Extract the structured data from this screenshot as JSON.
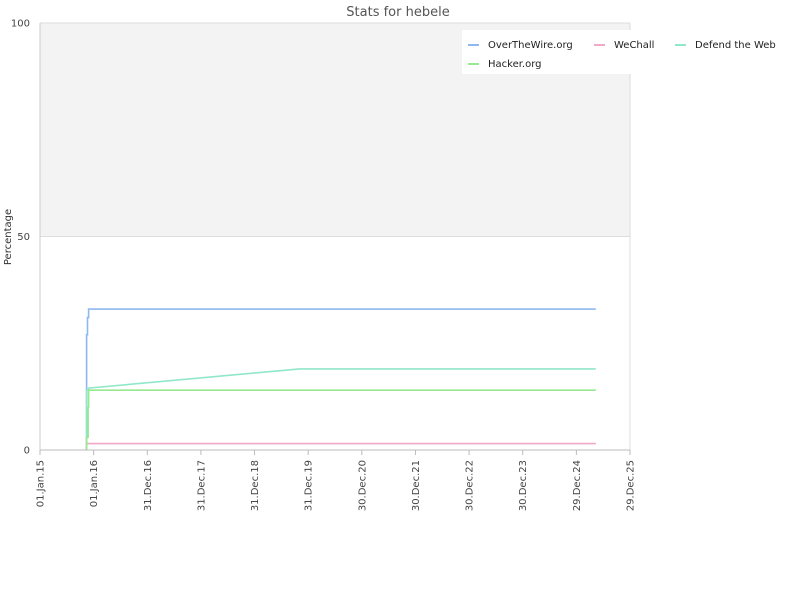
{
  "chart_data": {
    "type": "line",
    "title": "Stats for hebele",
    "xlabel": "",
    "ylabel": "Percentage",
    "ylim": [
      0,
      100
    ],
    "y_ticks": [
      "0",
      "50",
      "100"
    ],
    "x_ticks": [
      "01.Jan.15",
      "01.Jan.16",
      "31.Dec.16",
      "31.Dec.17",
      "31.Dec.18",
      "31.Dec.19",
      "30.Dec.20",
      "30.Dec.21",
      "30.Dec.22",
      "30.Dec.23",
      "29.Dec.24",
      "29.Dec.25"
    ],
    "xlim": [
      "2015-01-01",
      "2025-12-29"
    ],
    "grid": true,
    "legend_position": "top-right",
    "upper_band_color": "#f3f3f3",
    "series": [
      {
        "name": "OverTheWire.org",
        "color": "#8fb8f0",
        "points": [
          [
            "2015-11-14",
            0
          ],
          [
            "2015-11-14",
            27
          ],
          [
            "2015-11-20",
            27
          ],
          [
            "2015-11-20",
            31
          ],
          [
            "2015-11-28",
            31
          ],
          [
            "2015-11-28",
            33
          ],
          [
            "2025-05-10",
            33
          ]
        ]
      },
      {
        "name": "WeChall",
        "color": "#f0a8c8",
        "points": [
          [
            "2015-11-14",
            0
          ],
          [
            "2015-11-14",
            1.5
          ],
          [
            "2025-05-10",
            1.5
          ]
        ]
      },
      {
        "name": "Defend the Web",
        "color": "#90e8c8",
        "points": [
          [
            "2015-11-14",
            0
          ],
          [
            "2015-11-14",
            14
          ],
          [
            "2015-11-28",
            14
          ],
          [
            "2015-11-28",
            14.5
          ],
          [
            "2019-11-01",
            19
          ],
          [
            "2025-05-10",
            19
          ]
        ]
      },
      {
        "name": "Hacker.org",
        "color": "#98e890",
        "points": [
          [
            "2015-11-14",
            0
          ],
          [
            "2015-11-14",
            3
          ],
          [
            "2015-11-24",
            3
          ],
          [
            "2015-11-24",
            10
          ],
          [
            "2015-11-28",
            10
          ],
          [
            "2015-11-28",
            14
          ],
          [
            "2025-05-10",
            14
          ]
        ]
      }
    ]
  }
}
